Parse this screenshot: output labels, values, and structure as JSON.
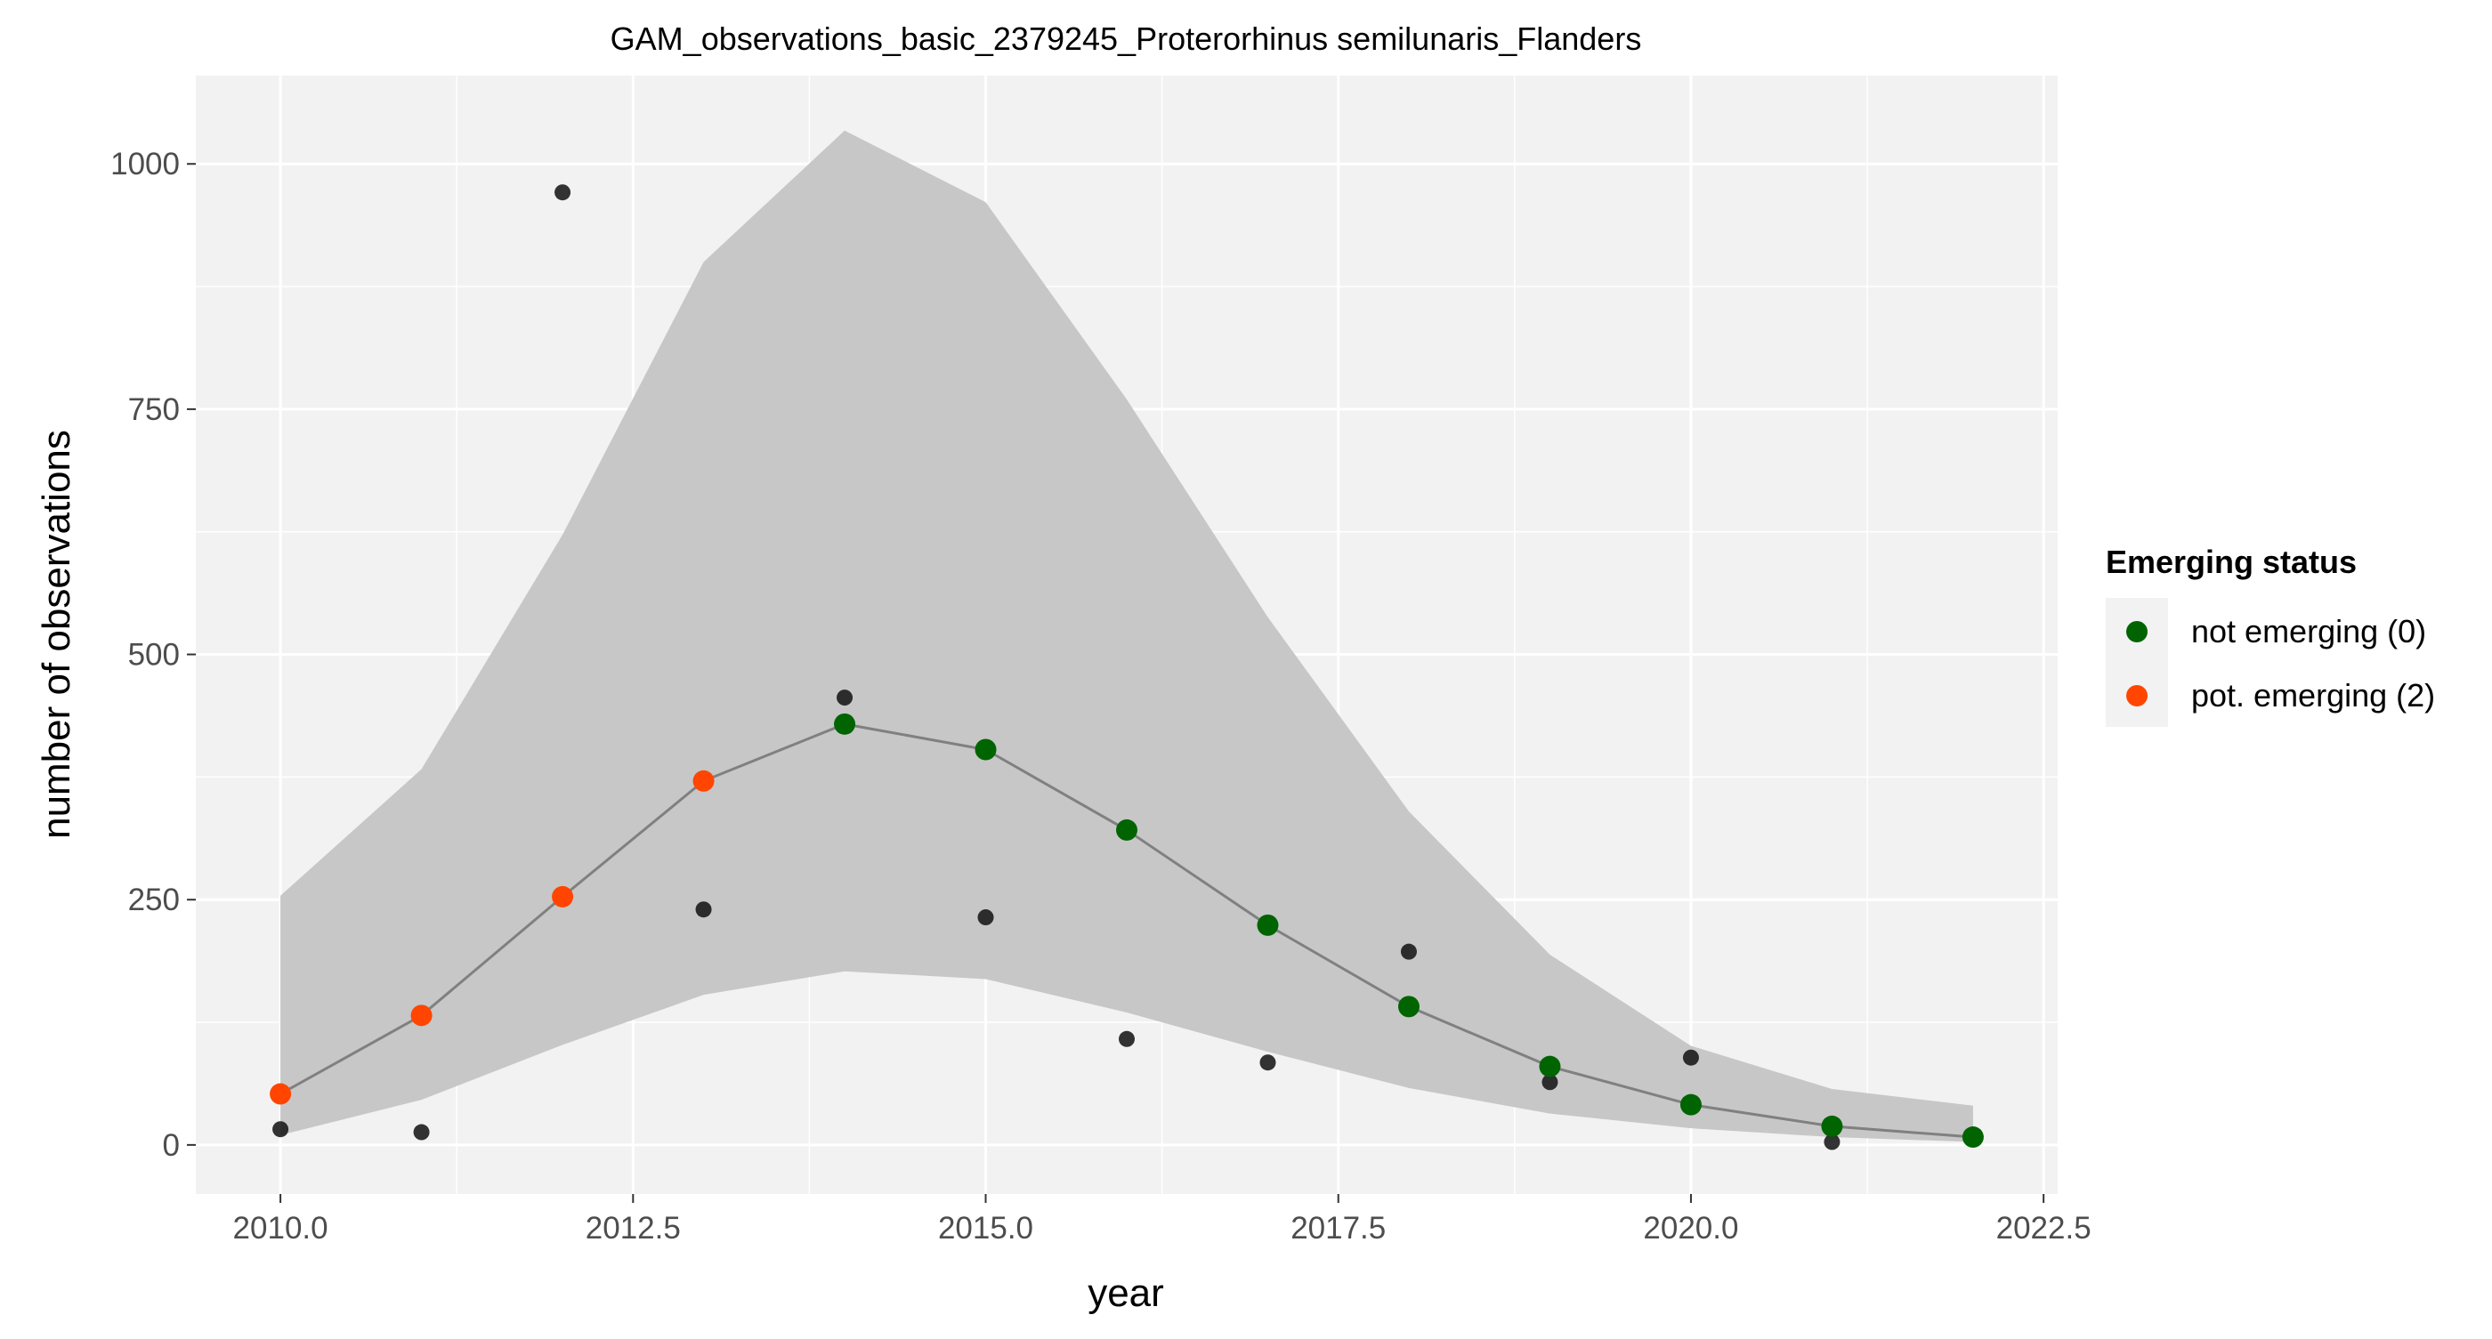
{
  "chart_data": {
    "type": "line",
    "title": "GAM_observations_basic_2379245_Proterorhinus semilunaris_Flanders",
    "xlabel": "year",
    "ylabel": "number of observations",
    "xlim": [
      2009.4,
      2022.6
    ],
    "ylim": [
      -50,
      1090
    ],
    "x_ticks": [
      2010.0,
      2012.5,
      2015.0,
      2017.5,
      2020.0,
      2022.5
    ],
    "x_tick_labels": [
      "2010.0",
      "2012.5",
      "2015.0",
      "2017.5",
      "2020.0",
      "2022.5"
    ],
    "y_ticks": [
      0,
      250,
      500,
      750,
      1000
    ],
    "y_tick_labels": [
      "0",
      "250",
      "500",
      "750",
      "1000"
    ],
    "grid": true,
    "legend": {
      "title": "Emerging status",
      "placement": "right",
      "entries": [
        {
          "label": "not emerging (0)",
          "color": "#006400"
        },
        {
          "label": "pot. emerging (2)",
          "color": "#FF4500"
        }
      ]
    },
    "colors": {
      "panel_background": "#F2F2F2",
      "grid": "#FFFFFF",
      "ribbon": "#C4C4C4",
      "fit_line": "#808080",
      "observed_points": "#111111"
    },
    "observed": {
      "x": [
        2010,
        2011,
        2012,
        2013,
        2014,
        2015,
        2016,
        2017,
        2018,
        2019,
        2020,
        2021
      ],
      "y": [
        16,
        13,
        971,
        240,
        456,
        232,
        108,
        84,
        197,
        64,
        89,
        3
      ]
    },
    "fit": {
      "x": [
        2010,
        2011,
        2012,
        2013,
        2014,
        2015,
        2016,
        2017,
        2018,
        2019,
        2020,
        2021,
        2022
      ],
      "y": [
        52,
        132,
        253,
        371,
        429,
        403,
        321,
        224,
        141,
        80,
        41,
        19,
        8
      ],
      "lower": [
        10,
        46,
        102,
        153,
        177,
        169,
        135,
        95,
        58,
        32,
        17,
        8,
        3
      ],
      "upper": [
        254,
        383,
        622,
        900,
        1034,
        961,
        760,
        538,
        340,
        194,
        101,
        57,
        40
      ],
      "status": [
        "pot. emerging (2)",
        "pot. emerging (2)",
        "pot. emerging (2)",
        "pot. emerging (2)",
        "not emerging (0)",
        "not emerging (0)",
        "not emerging (0)",
        "not emerging (0)",
        "not emerging (0)",
        "not emerging (0)",
        "not emerging (0)",
        "not emerging (0)",
        "not emerging (0)"
      ]
    }
  }
}
